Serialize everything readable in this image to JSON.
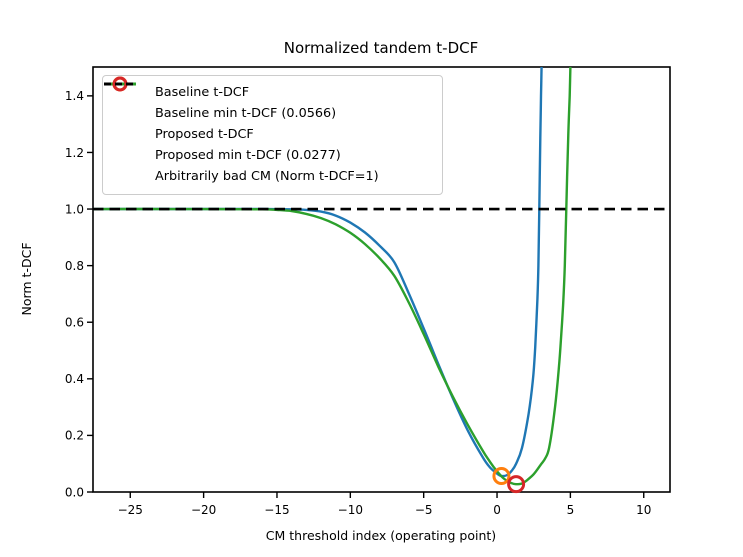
{
  "chart_data": {
    "type": "line",
    "title": "Normalized tandem t-DCF",
    "xlabel": "CM threshold index (operating point)",
    "ylabel": "Norm t-DCF",
    "xlim": [
      -27.54,
      11.79
    ],
    "ylim": [
      0,
      1.502
    ],
    "grid": false,
    "legend_position": "upper left",
    "xtick_values": [
      -25,
      -20,
      -15,
      -10,
      -5,
      0,
      5,
      10
    ],
    "xtick_labels": [
      "−25",
      "−20",
      "−15",
      "−10",
      "−5",
      "0",
      "5",
      "10"
    ],
    "ytick_values": [
      0.0,
      0.2,
      0.4,
      0.6,
      0.8,
      1.0,
      1.2,
      1.4
    ],
    "ytick_labels": [
      "0.0",
      "0.2",
      "0.4",
      "0.6",
      "0.8",
      "1.0",
      "1.2",
      "1.4"
    ],
    "colors": {
      "baseline": "#1f77b4",
      "baseline_min": "#ff7f0e",
      "proposed": "#2ca02c",
      "proposed_min": "#d62728",
      "reference": "#000000",
      "legend_border": "#cccccc"
    },
    "series": [
      {
        "name": "Baseline t-DCF",
        "kind": "line",
        "color": "#1f77b4",
        "points": [
          [
            -27.5,
            1.0
          ],
          [
            -24,
            1.0
          ],
          [
            -20,
            1.0
          ],
          [
            -18,
            1.0
          ],
          [
            -16,
            1.0
          ],
          [
            -15,
            0.9995
          ],
          [
            -14,
            0.999
          ],
          [
            -13,
            0.997
          ],
          [
            -12,
            0.991
          ],
          [
            -11,
            0.977
          ],
          [
            -10,
            0.952
          ],
          [
            -9,
            0.917
          ],
          [
            -8,
            0.87
          ],
          [
            -7,
            0.812
          ],
          [
            -6,
            0.7
          ],
          [
            -5,
            0.578
          ],
          [
            -4,
            0.452
          ],
          [
            -3,
            0.33
          ],
          [
            -2,
            0.218
          ],
          [
            -1,
            0.125
          ],
          [
            -0.5,
            0.088
          ],
          [
            0,
            0.065
          ],
          [
            0.3,
            0.0566
          ],
          [
            0.7,
            0.06
          ],
          [
            1,
            0.075
          ],
          [
            1.3,
            0.1
          ],
          [
            1.7,
            0.156
          ],
          [
            2.15,
            0.276
          ],
          [
            2.45,
            0.4
          ],
          [
            2.6,
            0.51
          ],
          [
            2.75,
            0.68
          ],
          [
            2.82,
            0.8
          ],
          [
            2.88,
            1.0
          ],
          [
            2.95,
            1.25
          ],
          [
            3.0,
            1.4
          ],
          [
            3.05,
            1.55
          ]
        ]
      },
      {
        "name": "Baseline min t-DCF (0.0566)",
        "kind": "marker",
        "color": "#ff7f0e",
        "point": [
          0.3,
          0.0566
        ],
        "min_value": 0.0566
      },
      {
        "name": "Proposed t-DCF",
        "kind": "line",
        "color": "#2ca02c",
        "points": [
          [
            -27.5,
            1.0
          ],
          [
            -24,
            1.0
          ],
          [
            -20,
            0.9998
          ],
          [
            -18,
            0.9995
          ],
          [
            -16,
            0.999
          ],
          [
            -15,
            0.997
          ],
          [
            -14,
            0.993
          ],
          [
            -13,
            0.983
          ],
          [
            -12,
            0.968
          ],
          [
            -11,
            0.946
          ],
          [
            -10,
            0.916
          ],
          [
            -9,
            0.876
          ],
          [
            -8,
            0.826
          ],
          [
            -7,
            0.764
          ],
          [
            -6,
            0.668
          ],
          [
            -5,
            0.558
          ],
          [
            -4,
            0.443
          ],
          [
            -3,
            0.336
          ],
          [
            -2,
            0.238
          ],
          [
            -1,
            0.148
          ],
          [
            -0.5,
            0.108
          ],
          [
            0,
            0.073
          ],
          [
            0.5,
            0.046
          ],
          [
            1,
            0.031
          ],
          [
            1.3,
            0.0277
          ],
          [
            1.7,
            0.03
          ],
          [
            2,
            0.04
          ],
          [
            2.5,
            0.063
          ],
          [
            3,
            0.098
          ],
          [
            3.3,
            0.12
          ],
          [
            3.55,
            0.156
          ],
          [
            3.9,
            0.276
          ],
          [
            4.15,
            0.4
          ],
          [
            4.32,
            0.51
          ],
          [
            4.5,
            0.66
          ],
          [
            4.62,
            0.8
          ],
          [
            4.72,
            1.0
          ],
          [
            4.85,
            1.25
          ],
          [
            4.95,
            1.4
          ],
          [
            5.02,
            1.55
          ]
        ]
      },
      {
        "name": "Proposed min t-DCF (0.0277)",
        "kind": "marker",
        "color": "#d62728",
        "point": [
          1.3,
          0.0277
        ],
        "min_value": 0.0277
      },
      {
        "name": "Arbitrarily bad CM (Norm t-DCF=1)",
        "kind": "hline",
        "color": "#000000",
        "y": 1.0,
        "dashed": true
      }
    ]
  }
}
